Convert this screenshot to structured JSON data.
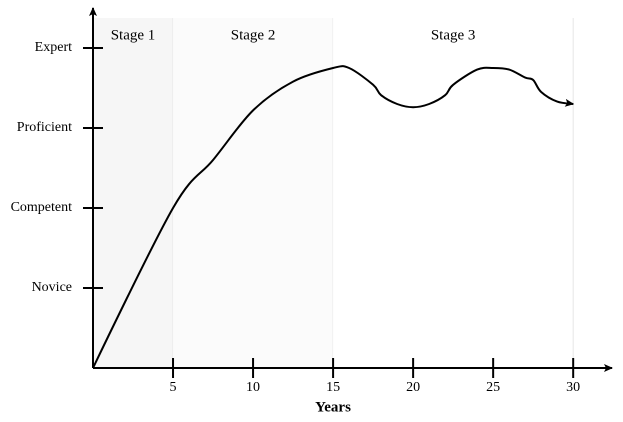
{
  "chart_data": {
    "type": "line",
    "xlabel": "Years",
    "x": [
      0,
      5,
      7.5,
      10,
      12.5,
      15,
      16,
      17.5,
      18,
      19,
      20,
      21,
      22,
      22.5,
      24,
      25,
      26,
      27,
      27.5,
      28,
      29,
      30
    ],
    "values": [
      0,
      2,
      2.6,
      3.22,
      3.58,
      3.75,
      3.75,
      3.54,
      3.41,
      3.3,
      3.26,
      3.3,
      3.41,
      3.54,
      3.73,
      3.75,
      3.73,
      3.63,
      3.6,
      3.45,
      3.33,
      3.3
    ],
    "color": "#000000",
    "xlim": [
      0,
      32.3
    ],
    "ylim": [
      0,
      4.475
    ],
    "xticks": [
      5,
      10,
      15,
      20,
      25,
      30
    ],
    "yticks": [
      {
        "value": 1,
        "label": "Novice"
      },
      {
        "value": 2,
        "label": "Competent"
      },
      {
        "value": 3,
        "label": "Proficient"
      },
      {
        "value": 4,
        "label": "Expert"
      }
    ],
    "stages": [
      {
        "label": "Stage 1",
        "start": 0,
        "end": 5
      },
      {
        "label": "Stage 2",
        "start": 5,
        "end": 15
      },
      {
        "label": "Stage 3",
        "start": 15,
        "end": 30
      }
    ]
  }
}
